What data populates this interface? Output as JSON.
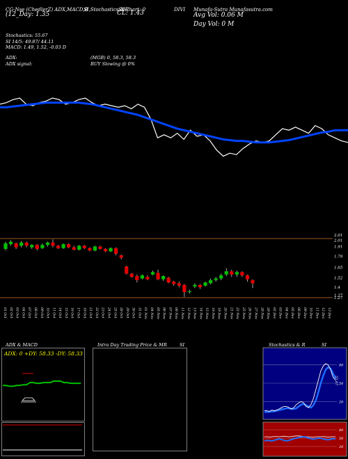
{
  "header": {
    "line1_left": "CG-Nse (ChedlerZ) ADX,MACD,B",
    "line2_left": "(12_Day: 1.35",
    "col_stoch": "SI,Stochastics,MR",
    "col_cl_label": "SI Chart: 0",
    "cl_value": "CL: 1.43",
    "col_mid": "DIVI",
    "col_right": "Munafa-Sutra Munafasutra.com",
    "avg_vol": "Avg Vol: 0.06  M",
    "day_vol": "Day Vol: 0   M"
  },
  "indicators": {
    "stochastics": "Stochastics: 55.67",
    "si": "SI 14/5: 49.87/ 44.11",
    "macd": "MACD: 1.49,  1.52,  -0.03 D",
    "adx": "ADX:",
    "adx_value": "(MGB) 0, 58.3, 58.3",
    "adx_signal": "ADX  signal:",
    "signal_text": "BUY Slowing @ 0%"
  },
  "price_axis": [
    "2.01",
    "1.91",
    "1.79",
    "1.65",
    "1.52",
    "1.4",
    "1.27",
    "1.27"
  ],
  "price_axis_top2": "2.01",
  "dates": [
    "01 Oct",
    "02 Oct",
    "03 Oct",
    "04 Oct",
    "07 Oct",
    "08 Oct",
    "09 Oct",
    "10 Oct",
    "11 Oct",
    "14 Oct",
    "15 Oct",
    "16 Oct",
    "17 Oct",
    "18 Oct",
    "21 Oct",
    "22 Oct",
    "23 Oct",
    "24 Oct",
    "25 Oct",
    "28 Oct",
    "29 Oct",
    "30 Oct",
    "31 Oct",
    "01 Nov",
    "04 Nov",
    "05 Nov",
    "06 Nov",
    "07 Nov",
    "08 Nov",
    "11 Nov",
    "12 Nov",
    "13 Nov",
    "14 Nov",
    "15 Nov",
    "18 Nov",
    "19 Nov",
    "20 Nov",
    "21 Nov",
    "22 Nov",
    "25 Nov",
    "26 Nov",
    "27 Nov",
    "28 Nov",
    "29 Nov",
    "02 Dec",
    "03 Dec",
    "04 Dec",
    "05 Dec",
    "06 Dec",
    "09 Dec",
    "10 Dec",
    "11 Dec",
    "12 Dec",
    "13 Dec"
  ],
  "panels": {
    "adx_title": "ADX  & MACD",
    "adx_readout": "ADX: 0  +DY: 58.33  -DY: 58.33",
    "intraday_title": "Intra  Day Trading Price  & MR",
    "intraday_si": "SI",
    "stoch_title": "Stochastics & R",
    "stoch_si": "SI",
    "stoch_axis": [
      "80",
      "50",
      "20"
    ],
    "stoch_value": "55.67",
    "si_axis": [
      "80",
      "50",
      "20"
    ]
  },
  "colors": {
    "up": "#00c000",
    "down": "#e00000",
    "ma": "#0044ff",
    "orange": "#a05a1e",
    "panel_border": "#808080",
    "stoch_bg": "#000080",
    "si_bg": "#a00000"
  },
  "chart_data": [
    {
      "type": "line",
      "name": "price-line-with-ma",
      "series": [
        {
          "values": [
            1.46,
            1.47,
            1.49,
            1.5,
            1.46,
            1.45,
            1.47,
            1.48,
            1.5,
            1.49,
            1.46,
            1.47,
            1.49,
            1.5,
            1.47,
            1.45,
            1.46,
            1.45,
            1.44,
            1.45,
            1.43,
            1.46,
            1.44,
            1.36,
            1.24,
            1.26,
            1.24,
            1.27,
            1.23,
            1.29,
            1.25,
            1.26,
            1.22,
            1.16,
            1.12,
            1.14,
            1.13,
            1.17,
            1.2,
            1.22,
            1.21,
            1.22,
            1.26,
            1.3,
            1.29,
            1.31,
            1.29,
            1.27,
            1.32,
            1.3,
            1.26,
            1.24,
            1.22,
            1.21
          ]
        },
        {
          "values": [
            1.44,
            1.44,
            1.445,
            1.45,
            1.455,
            1.46,
            1.465,
            1.47,
            1.47,
            1.47,
            1.47,
            1.47,
            1.47,
            1.465,
            1.46,
            1.45,
            1.44,
            1.43,
            1.42,
            1.41,
            1.4,
            1.39,
            1.375,
            1.36,
            1.345,
            1.33,
            1.315,
            1.3,
            1.29,
            1.28,
            1.27,
            1.26,
            1.25,
            1.24,
            1.23,
            1.225,
            1.22,
            1.22,
            1.215,
            1.21,
            1.21,
            1.21,
            1.215,
            1.22,
            1.225,
            1.235,
            1.245,
            1.255,
            1.265,
            1.275,
            1.28,
            1.29,
            1.29,
            1.29
          ]
        }
      ]
    },
    {
      "type": "candlestick",
      "ylim": [
        1.27,
        2.01
      ],
      "candles": [
        {
          "o": 1.88,
          "c": 1.95,
          "h": 1.97,
          "l": 1.86
        },
        {
          "o": 1.94,
          "c": 1.97,
          "h": 1.99,
          "l": 1.92
        },
        {
          "o": 1.95,
          "c": 1.9,
          "h": 1.96,
          "l": 1.88
        },
        {
          "o": 1.92,
          "c": 1.96,
          "h": 1.98,
          "l": 1.9
        },
        {
          "o": 1.96,
          "c": 1.92,
          "h": 1.97,
          "l": 1.9
        },
        {
          "o": 1.9,
          "c": 1.93,
          "h": 1.94,
          "l": 1.88
        },
        {
          "o": 1.93,
          "c": 1.88,
          "h": 1.94,
          "l": 1.86
        },
        {
          "o": 1.89,
          "c": 1.93,
          "h": 1.95,
          "l": 1.88
        },
        {
          "o": 1.93,
          "c": 1.96,
          "h": 1.97,
          "l": 1.91
        },
        {
          "o": 1.96,
          "c": 1.92,
          "h": 2.0,
          "l": 1.9
        },
        {
          "o": 1.92,
          "c": 1.89,
          "h": 1.93,
          "l": 1.88
        },
        {
          "o": 1.89,
          "c": 1.94,
          "h": 1.95,
          "l": 1.88
        },
        {
          "o": 1.94,
          "c": 1.9,
          "h": 1.95,
          "l": 1.89
        },
        {
          "o": 1.9,
          "c": 1.87,
          "h": 1.92,
          "l": 1.86
        },
        {
          "o": 1.87,
          "c": 1.92,
          "h": 1.93,
          "l": 1.86
        },
        {
          "o": 1.92,
          "c": 1.89,
          "h": 1.93,
          "l": 1.88
        },
        {
          "o": 1.89,
          "c": 1.86,
          "h": 1.9,
          "l": 1.85
        },
        {
          "o": 1.86,
          "c": 1.91,
          "h": 1.92,
          "l": 1.85
        },
        {
          "o": 1.91,
          "c": 1.88,
          "h": 1.92,
          "l": 1.87
        },
        {
          "o": 1.88,
          "c": 1.85,
          "h": 1.89,
          "l": 1.84
        },
        {
          "o": 1.85,
          "c": 1.89,
          "h": 1.9,
          "l": 1.84
        },
        {
          "o": 1.89,
          "c": 1.82,
          "h": 1.9,
          "l": 1.8
        },
        {
          "o": 1.8,
          "c": 1.77,
          "h": 1.81,
          "l": 1.75
        },
        {
          "o": 1.66,
          "c": 1.57,
          "h": 1.67,
          "l": 1.56
        },
        {
          "o": 1.57,
          "c": 1.53,
          "h": 1.58,
          "l": 1.52
        },
        {
          "o": 1.54,
          "c": 1.49,
          "h": 1.56,
          "l": 1.46
        },
        {
          "o": 1.51,
          "c": 1.55,
          "h": 1.56,
          "l": 1.5
        },
        {
          "o": 1.53,
          "c": 1.5,
          "h": 1.55,
          "l": 1.49
        },
        {
          "o": 1.56,
          "c": 1.59,
          "h": 1.61,
          "l": 1.55
        },
        {
          "o": 1.58,
          "c": 1.5,
          "h": 1.62,
          "l": 1.49
        },
        {
          "o": 1.5,
          "c": 1.54,
          "h": 1.55,
          "l": 1.48
        },
        {
          "o": 1.52,
          "c": 1.46,
          "h": 1.53,
          "l": 1.45
        },
        {
          "o": 1.47,
          "c": 1.44,
          "h": 1.48,
          "l": 1.42
        },
        {
          "o": 1.45,
          "c": 1.42,
          "h": 1.47,
          "l": 1.4
        },
        {
          "o": 1.43,
          "c": 1.34,
          "h": 1.44,
          "l": 1.28
        },
        {
          "o": 1.34,
          "c": 1.35,
          "h": 1.37,
          "l": 1.32
        },
        {
          "o": 1.41,
          "c": 1.43,
          "h": 1.45,
          "l": 1.39
        },
        {
          "o": 1.43,
          "c": 1.4,
          "h": 1.44,
          "l": 1.38
        },
        {
          "o": 1.42,
          "c": 1.46,
          "h": 1.47,
          "l": 1.41
        },
        {
          "o": 1.45,
          "c": 1.49,
          "h": 1.51,
          "l": 1.44
        },
        {
          "o": 1.49,
          "c": 1.51,
          "h": 1.53,
          "l": 1.47
        },
        {
          "o": 1.51,
          "c": 1.55,
          "h": 1.57,
          "l": 1.49
        },
        {
          "o": 1.56,
          "c": 1.6,
          "h": 1.64,
          "l": 1.54
        },
        {
          "o": 1.6,
          "c": 1.56,
          "h": 1.62,
          "l": 1.53
        },
        {
          "o": 1.56,
          "c": 1.59,
          "h": 1.61,
          "l": 1.53
        },
        {
          "o": 1.59,
          "c": 1.55,
          "h": 1.6,
          "l": 1.53
        },
        {
          "o": 1.55,
          "c": 1.5,
          "h": 1.56,
          "l": 1.47
        },
        {
          "o": 1.49,
          "c": 1.45,
          "h": 1.5,
          "l": 1.39
        }
      ]
    },
    {
      "type": "line",
      "name": "adx-macd",
      "series": [
        {
          "values": [
            54,
            54,
            53,
            53,
            54,
            54,
            55,
            55,
            58,
            58,
            57,
            57,
            58,
            58,
            58,
            60,
            60,
            60,
            58,
            58,
            57,
            57,
            57,
            57
          ]
        }
      ]
    },
    {
      "type": "line",
      "name": "stochastics",
      "ylim": [
        0,
        100
      ],
      "series": [
        {
          "values": [
            5,
            5,
            4,
            6,
            5,
            6,
            8,
            10,
            12,
            12,
            10,
            8,
            10,
            15,
            18,
            20,
            18,
            12,
            10,
            15,
            25,
            40,
            55,
            70,
            78,
            82,
            80,
            72,
            60,
            55
          ]
        },
        {
          "values": [
            3,
            3,
            3,
            4,
            4,
            5,
            6,
            7,
            8,
            9,
            9,
            8,
            8,
            9,
            12,
            15,
            16,
            14,
            12,
            10,
            14,
            22,
            35,
            50,
            62,
            72,
            76,
            74,
            66,
            58
          ]
        }
      ]
    },
    {
      "type": "line",
      "name": "si",
      "ylim": [
        0,
        100
      ],
      "series": [
        {
          "values": [
            40,
            42,
            41,
            40,
            42,
            45,
            47,
            45,
            42,
            40,
            42,
            45,
            48,
            50,
            52,
            54,
            55,
            53,
            50,
            48,
            46,
            48,
            50,
            49,
            47,
            45,
            44,
            46,
            48,
            47
          ]
        },
        {
          "values": [
            55,
            55,
            54,
            55,
            56,
            56,
            55,
            56,
            57,
            56,
            55,
            56,
            57,
            58,
            58,
            57,
            56,
            55,
            55,
            54,
            54,
            55,
            55,
            55,
            56,
            55,
            54,
            55,
            55,
            55
          ]
        }
      ]
    }
  ]
}
